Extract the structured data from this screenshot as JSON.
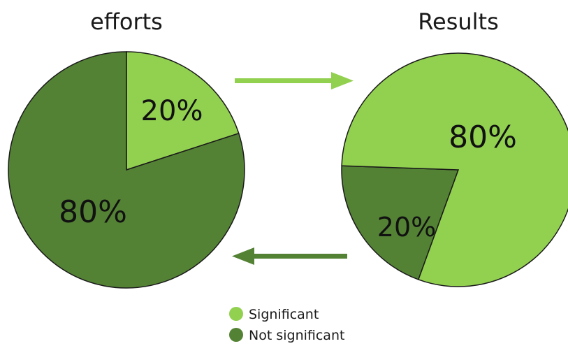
{
  "colors": {
    "significant": "#92d050",
    "not_significant": "#548235",
    "arrow_light": "#92d050",
    "arrow_dark": "#548235"
  },
  "chart_data": [
    {
      "type": "pie",
      "title": "efforts",
      "slices": [
        {
          "label": "Significant",
          "value": 20,
          "display": "20%"
        },
        {
          "label": "Not significant",
          "value": 80,
          "display": "80%"
        }
      ]
    },
    {
      "type": "pie",
      "title": "Results",
      "slices": [
        {
          "label": "Significant",
          "value": 80,
          "display": "80%"
        },
        {
          "label": "Not significant",
          "value": 20,
          "display": "20%"
        }
      ]
    }
  ],
  "legend": {
    "position": "bottom-center",
    "items": [
      {
        "label": "Significant"
      },
      {
        "label": "Not significant"
      }
    ]
  }
}
